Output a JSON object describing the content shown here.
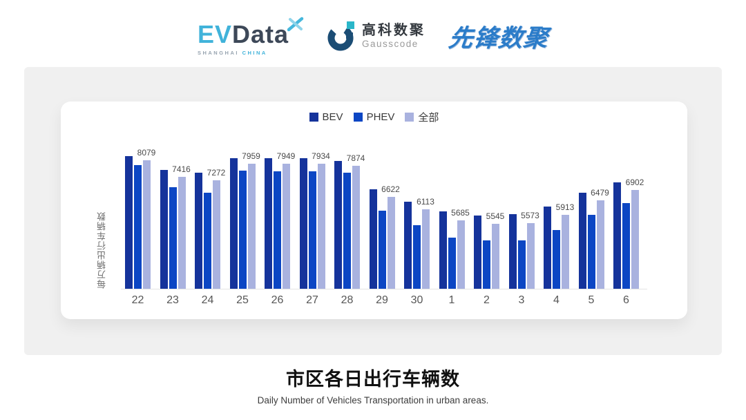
{
  "header": {
    "evdata": {
      "part1": "EV",
      "part2": "Data",
      "sub1": "SHANGHAI",
      "sub2": "CHINA"
    },
    "gausscode": {
      "name_cn": "高科数聚",
      "name_en": "Gausscode"
    },
    "pioneer": {
      "name": "先锋数聚"
    }
  },
  "chart_data": {
    "type": "bar",
    "title": "市区各日出行车辆数",
    "subtitle": "Daily Number of Vehicles Transportation in urban areas.",
    "ylabel": "每万辆出行车辆数",
    "xlabel": "",
    "categories": [
      "22",
      "23",
      "24",
      "25",
      "26",
      "27",
      "28",
      "29",
      "30",
      "1",
      "2",
      "3",
      "4",
      "5",
      "6"
    ],
    "series": [
      {
        "name": "BEV",
        "color": "#15339B",
        "values": [
          8240,
          7700,
          7575,
          8180,
          8180,
          8160,
          8050,
          6930,
          6420,
          6030,
          5890,
          5920,
          6240,
          6790,
          7205
        ]
      },
      {
        "name": "PHEV",
        "color": "#0C46C4",
        "values": [
          7880,
          7000,
          6775,
          7670,
          7645,
          7630,
          7575,
          6070,
          5485,
          4980,
          4885,
          4880,
          5300,
          5900,
          6360
        ]
      },
      {
        "name": "全部",
        "color": "#A9B2DF",
        "labeled": true,
        "values": [
          8079,
          7416,
          7272,
          7959,
          7949,
          7934,
          7874,
          6622,
          6113,
          5685,
          5545,
          5573,
          5913,
          6479,
          6902
        ]
      }
    ],
    "value_labels": [
      8079,
      7416,
      7272,
      7959,
      7949,
      7934,
      7874,
      6622,
      6113,
      5685,
      5545,
      5573,
      5913,
      6479,
      6902
    ],
    "ylim": [
      2950,
      9300
    ],
    "legend_position": "top-center",
    "grid": false
  }
}
